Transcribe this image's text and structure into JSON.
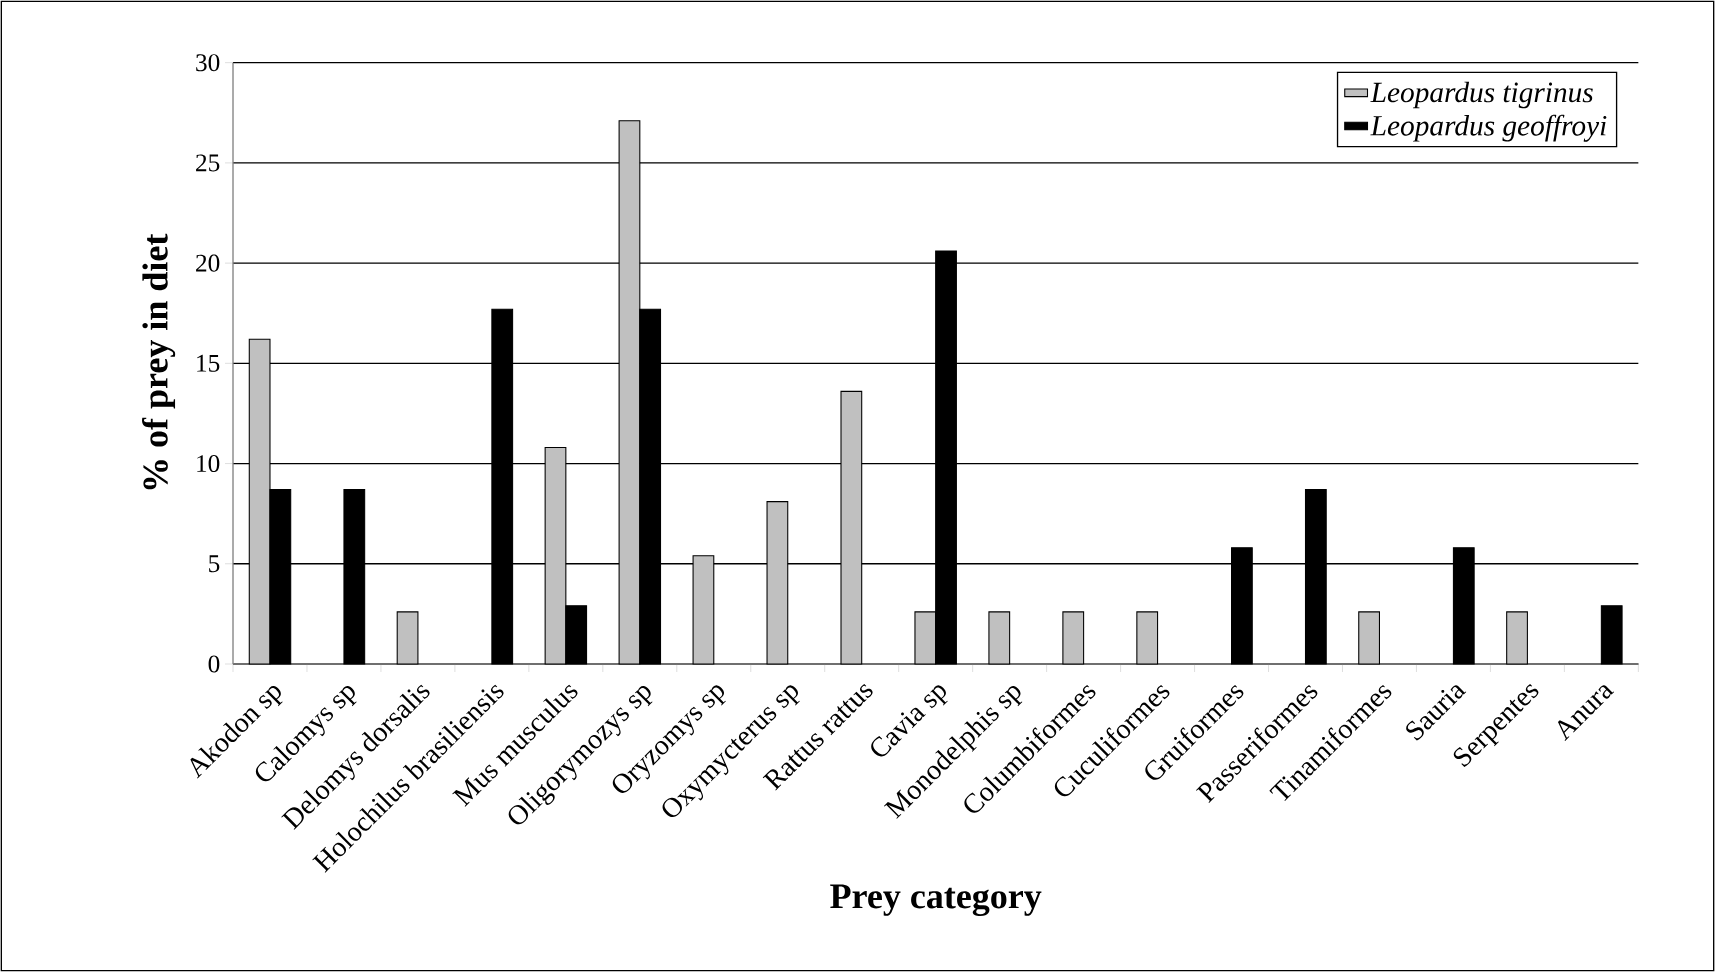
{
  "chart_data": {
    "type": "bar",
    "xlabel": "Prey category",
    "ylabel": "% of prey in diet",
    "categories": [
      "Akodon sp",
      "Calomys sp",
      "Delomys dorsalis",
      "Holochilus brasiliensis",
      "Mus musculus",
      "Oligorymozys sp",
      "Oryzomys sp",
      "Oxymycterus sp",
      "Rattus rattus",
      "Cavia sp",
      "Monodelphis sp",
      "Columbiformes",
      "Cuculiformes",
      "Gruiformes",
      "Passeriformes",
      "Tinamiformes",
      "Sauria",
      "Serpentes",
      "Anura"
    ],
    "series": [
      {
        "name": "Leopardus tigrinus",
        "color": "#c0c0c0",
        "values": [
          16.2,
          0,
          2.6,
          0,
          10.8,
          27.1,
          5.4,
          8.1,
          13.6,
          2.6,
          2.6,
          2.6,
          2.6,
          0,
          0,
          2.6,
          0,
          2.6,
          0
        ]
      },
      {
        "name": "Leopardus geoffroyi",
        "color": "#000000",
        "values": [
          8.7,
          8.7,
          0,
          17.7,
          2.9,
          17.7,
          0,
          0,
          0,
          20.6,
          0,
          0,
          0,
          5.8,
          8.7,
          0,
          5.8,
          0,
          2.9
        ]
      }
    ],
    "ylim": [
      0,
      30
    ],
    "yticks": [
      0,
      5,
      10,
      15,
      20,
      25,
      30
    ],
    "grid": "y",
    "legend": "top right"
  }
}
